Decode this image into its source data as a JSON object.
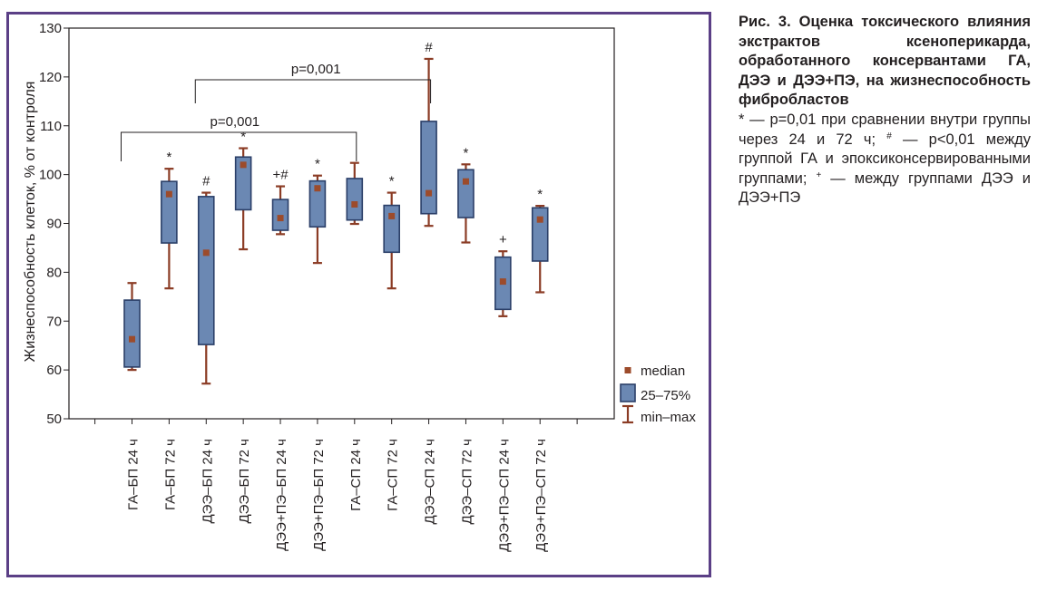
{
  "chart_data": {
    "type": "box",
    "ylabel": "Жизнеспособность клеток, % от контроля",
    "ylim": [
      50,
      130
    ],
    "y_ticks": [
      50,
      60,
      70,
      80,
      90,
      100,
      110,
      120,
      130
    ],
    "grid": false,
    "legend_position": "bottom-right",
    "legend": {
      "median": "median",
      "box": "25–75%",
      "whisker": "min–max"
    },
    "colors": {
      "box_fill": "#6b88b3",
      "box_stroke": "#2b3f68",
      "median": "#9c4b2b",
      "whisker": "#8b3c25",
      "frame": "#5b3f86"
    },
    "categories": [
      "ГА–БП 24 ч",
      "ГА–БП 72 ч",
      "ДЭЭ–БП 24 ч",
      "ДЭЭ–БП 72 ч",
      "ДЭЭ+ПЭ–БП 24 ч",
      "ДЭЭ+ПЭ–БП 72 ч",
      "ГА–СП 24 ч",
      "ГА–СП 72 ч",
      "ДЭЭ–СП 24 ч",
      "ДЭЭ–СП 72 ч",
      "ДЭЭ+ПЭ–СП 24 ч",
      "ДЭЭ+ПЭ–СП 72 ч"
    ],
    "series": [
      {
        "min": [
          60.0,
          76.7,
          57.2,
          84.7,
          87.8,
          81.9,
          89.9,
          76.7,
          89.5,
          86.1,
          71.0,
          75.9
        ],
        "q1": [
          60.6,
          86.0,
          65.2,
          92.8,
          88.6,
          89.3,
          90.7,
          84.1,
          92.0,
          91.2,
          72.4,
          82.3
        ],
        "median": [
          66.3,
          96.0,
          84.0,
          102.0,
          91.1,
          97.2,
          93.9,
          91.5,
          96.2,
          98.6,
          78.1,
          90.8
        ],
        "q3": [
          74.3,
          98.6,
          95.5,
          103.6,
          94.9,
          98.7,
          99.2,
          93.7,
          110.9,
          101.0,
          83.1,
          93.2
        ],
        "max": [
          77.8,
          101.2,
          96.3,
          105.4,
          97.6,
          99.8,
          102.4,
          96.3,
          123.7,
          102.1,
          84.3,
          93.6
        ]
      }
    ],
    "annotations": [
      "",
      "*",
      "#",
      "*",
      "+#",
      "*",
      "",
      "*",
      "#",
      "*",
      "+",
      "*"
    ],
    "brackets": [
      {
        "from": "ГА–БП 24 ч",
        "to": "ГА–СП 24 ч",
        "label": "p=0,001"
      },
      {
        "from": "ДЭЭ–БП 24 ч",
        "to": "ДЭЭ–СП 24 ч",
        "label": "p=0,001"
      }
    ]
  },
  "caption": {
    "title": "Рис. 3. Оценка токсического влияния экстрактов ксеноперикарда, обработанного консервантами ГА, ДЭЭ и ДЭЭ+ПЭ, на жизнеспособность фибробластов",
    "note_star": "* — p=0,01 при сравнении внутри группы через 24 и 72 ч;",
    "note_hash_symbol": "#",
    "note_hash": " — p<0,01 между группой ГА и эпоксиконсервированными группами;",
    "note_plus_symbol": "+",
    "note_plus": " — между группами ДЭЭ и ДЭЭ+ПЭ"
  }
}
